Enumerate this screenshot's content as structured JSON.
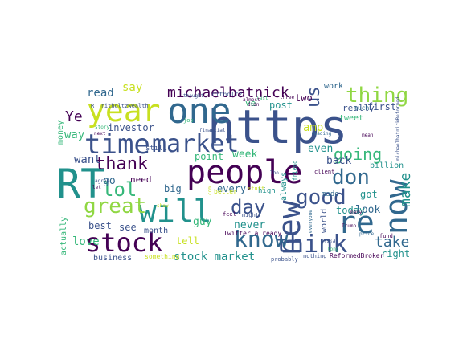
{
  "palette": {
    "dark_purple": "#440154",
    "indigo": "#3b528b",
    "blue": "#31688e",
    "teal": "#21918c",
    "green": "#35b779",
    "lime": "#90d743",
    "yellow": "#c8e020"
  },
  "words": [
    {
      "text": "https",
      "color": "#3b528b"
    },
    {
      "text": "one",
      "color": "#31688e"
    },
    {
      "text": "people",
      "color": "#440154"
    },
    {
      "text": "RT",
      "color": "#21918c"
    },
    {
      "text": "year",
      "color": "#c8e020"
    },
    {
      "text": "time",
      "color": "#3b528b"
    },
    {
      "text": "market",
      "color": "#3b528b"
    },
    {
      "text": "will",
      "color": "#21918c"
    },
    {
      "text": "stock",
      "color": "#440154"
    },
    {
      "text": "new",
      "color": "#3b528b"
    },
    {
      "text": "re",
      "color": "#31688e"
    },
    {
      "text": "now",
      "color": "#31688e"
    },
    {
      "text": "think",
      "color": "#3b528b"
    },
    {
      "text": "know",
      "color": "#31688e"
    },
    {
      "text": "thing",
      "color": "#90d743"
    },
    {
      "text": "good",
      "color": "#3b528b"
    },
    {
      "text": "don",
      "color": "#31688e"
    },
    {
      "text": "great",
      "color": "#90d743"
    },
    {
      "text": "lol",
      "color": "#35b779"
    },
    {
      "text": "day",
      "color": "#3b528b"
    },
    {
      "text": "thank",
      "color": "#440154"
    },
    {
      "text": "us",
      "color": "#3b528b"
    },
    {
      "text": "michaelbatnick",
      "color": "#440154"
    },
    {
      "text": "going",
      "color": "#35b779"
    },
    {
      "text": "make",
      "color": "#21918c"
    },
    {
      "text": "take",
      "color": "#31688e"
    },
    {
      "text": "stock market",
      "color": "#21918c"
    },
    {
      "text": "Ye",
      "color": "#440154"
    },
    {
      "text": "read",
      "color": "#31688e"
    },
    {
      "text": "say",
      "color": "#c8e020"
    },
    {
      "text": "investor",
      "color": "#3b528b"
    },
    {
      "text": "want",
      "color": "#3b528b"
    },
    {
      "text": "way",
      "color": "#35b779"
    },
    {
      "text": "week",
      "color": "#35b779"
    },
    {
      "text": "even",
      "color": "#21918c"
    },
    {
      "text": "back",
      "color": "#3b528b"
    },
    {
      "text": "look",
      "color": "#31688e"
    },
    {
      "text": "today",
      "color": "#21918c"
    },
    {
      "text": "never",
      "color": "#21918c"
    },
    {
      "text": "post",
      "color": "#21918c"
    },
    {
      "text": "two",
      "color": "#440154"
    },
    {
      "text": "really",
      "color": "#3b528b"
    },
    {
      "text": "first",
      "color": "#3b528b"
    },
    {
      "text": "point",
      "color": "#35b779"
    },
    {
      "text": "guy",
      "color": "#35b779"
    },
    {
      "text": "see",
      "color": "#3b528b"
    },
    {
      "text": "best",
      "color": "#3b528b"
    },
    {
      "text": "love",
      "color": "#35b779"
    },
    {
      "text": "tell",
      "color": "#c8e020"
    },
    {
      "text": "big",
      "color": "#31688e"
    },
    {
      "text": "every",
      "color": "#31688e"
    },
    {
      "text": "go",
      "color": "#31688e"
    },
    {
      "text": "need",
      "color": "#440154"
    },
    {
      "text": "got",
      "color": "#21918c"
    },
    {
      "text": "right",
      "color": "#21918c"
    },
    {
      "text": "billion",
      "color": "#21918c"
    },
    {
      "text": "amp",
      "color": "#c8e020"
    },
    {
      "text": "always",
      "color": "#21918c"
    },
    {
      "text": "business",
      "color": "#3b528b"
    },
    {
      "text": "month",
      "color": "#3b528b"
    },
    {
      "text": "money",
      "color": "#35b779"
    },
    {
      "text": "actually",
      "color": "#35b779"
    },
    {
      "text": "still",
      "color": "#3b528b"
    },
    {
      "text": "ve",
      "color": "#35b779"
    },
    {
      "text": "tweet",
      "color": "#35b779"
    },
    {
      "text": "work",
      "color": "#31688e"
    },
    {
      "text": "Twitter already",
      "color": "#440154"
    },
    {
      "text": "ritholtz",
      "color": "#3b528b"
    },
    {
      "text": "world",
      "color": "#3b528b"
    },
    {
      "text": "made",
      "color": "#31688e"
    },
    {
      "text": "something",
      "color": "#c8e020"
    },
    {
      "text": "probably",
      "color": "#3b528b"
    },
    {
      "text": "nothing",
      "color": "#3b528b"
    },
    {
      "text": "ReformedBroker",
      "color": "#440154"
    },
    {
      "text": "high",
      "color": "#21918c"
    },
    {
      "text": "feel",
      "color": "#440154"
    },
    {
      "text": "might",
      "color": "#3b528b"
    },
    {
      "text": "better",
      "color": "#c8e020"
    },
    {
      "text": "stuff",
      "color": "#c8e020"
    },
    {
      "text": "much",
      "color": "#31688e"
    },
    {
      "text": "fund",
      "color": "#440154"
    },
    {
      "text": "thought",
      "color": "#3b528b"
    },
    {
      "text": "financial",
      "color": "#3b528b"
    },
    {
      "text": "job",
      "color": "#35b779"
    },
    {
      "text": "last",
      "color": "#35b779"
    },
    {
      "text": "almost",
      "color": "#440154"
    },
    {
      "text": "didn",
      "color": "#440154"
    },
    {
      "text": "reading",
      "color": "#31688e"
    },
    {
      "text": "Trump",
      "color": "#440154"
    },
    {
      "text": "price",
      "color": "#31688e"
    },
    {
      "text": "client",
      "color": "#440154"
    },
    {
      "text": "friend",
      "color": "#21918c"
    },
    {
      "text": "RT ritholtzwealth",
      "color": "#3b528b"
    },
    {
      "text": "story",
      "color": "#35b779"
    },
    {
      "text": "agree",
      "color": "#3b528b"
    },
    {
      "text": "next",
      "color": "#440154"
    },
    {
      "text": "let",
      "color": "#440154"
    },
    {
      "text": "show",
      "color": "#c8e020"
    },
    {
      "text": "mean",
      "color": "#440154"
    },
    {
      "text": "everyone",
      "color": "#31688e"
    },
    {
      "text": "com",
      "color": "#c8e020"
    },
    {
      "text": "many",
      "color": "#440154"
    },
    {
      "text": "Tho",
      "color": "#3b528b"
    },
    {
      "text": "michaelbatnickReformed",
      "color": "#3b528b"
    },
    {
      "text": "long",
      "color": "#35b779"
    },
    {
      "text": "said",
      "color": "#3b528b"
    },
    {
      "text": "three",
      "color": "#440154"
    }
  ]
}
